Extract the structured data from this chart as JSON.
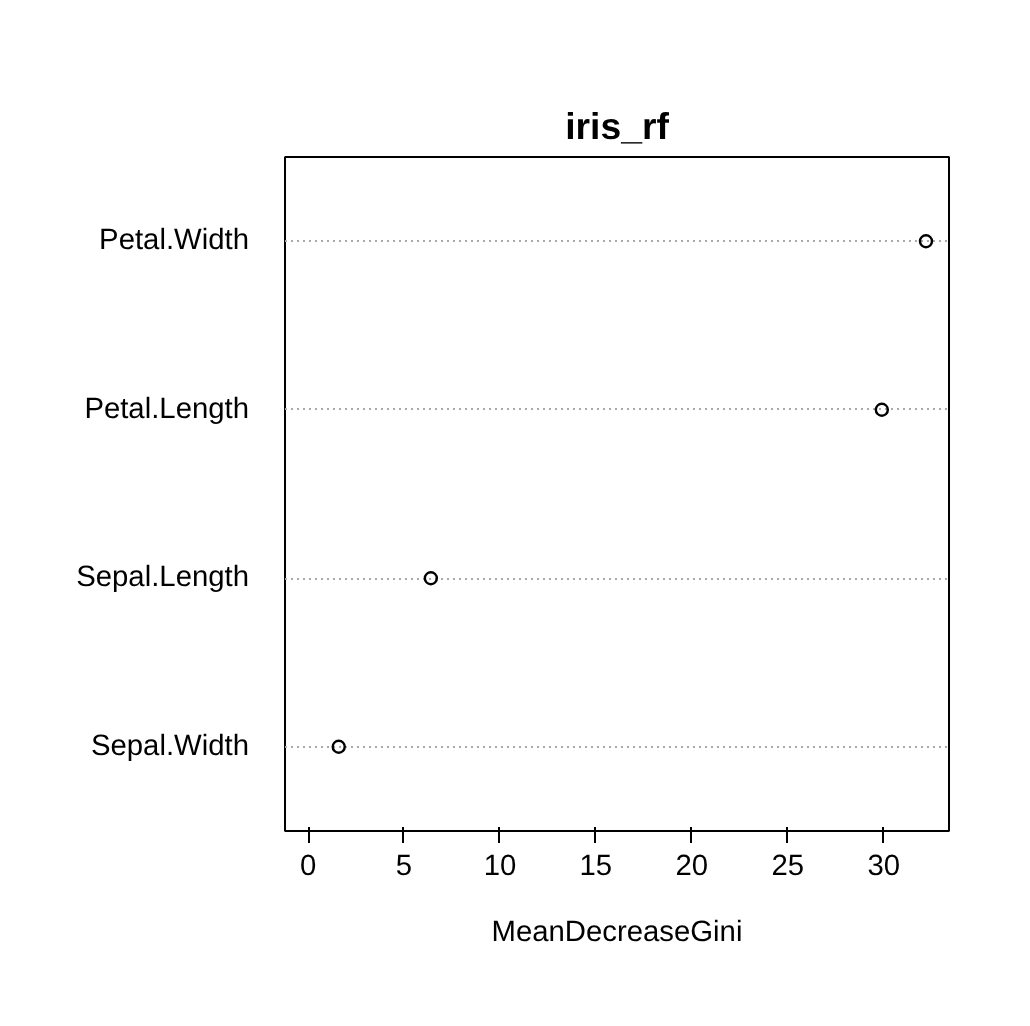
{
  "chart_data": {
    "type": "scatter",
    "orientation": "horizontal",
    "title": "iris_rf",
    "xlabel": "MeanDecreaseGini",
    "categories": [
      "Petal.Width",
      "Petal.Length",
      "Sepal.Length",
      "Sepal.Width"
    ],
    "values": [
      32.2,
      29.9,
      6.4,
      1.6
    ],
    "color": "#000000",
    "marker": "circle",
    "xlim": [
      -1.2,
      33.4
    ],
    "xticks": [
      0,
      5,
      10,
      15,
      20,
      25,
      30
    ],
    "grid": "y"
  }
}
